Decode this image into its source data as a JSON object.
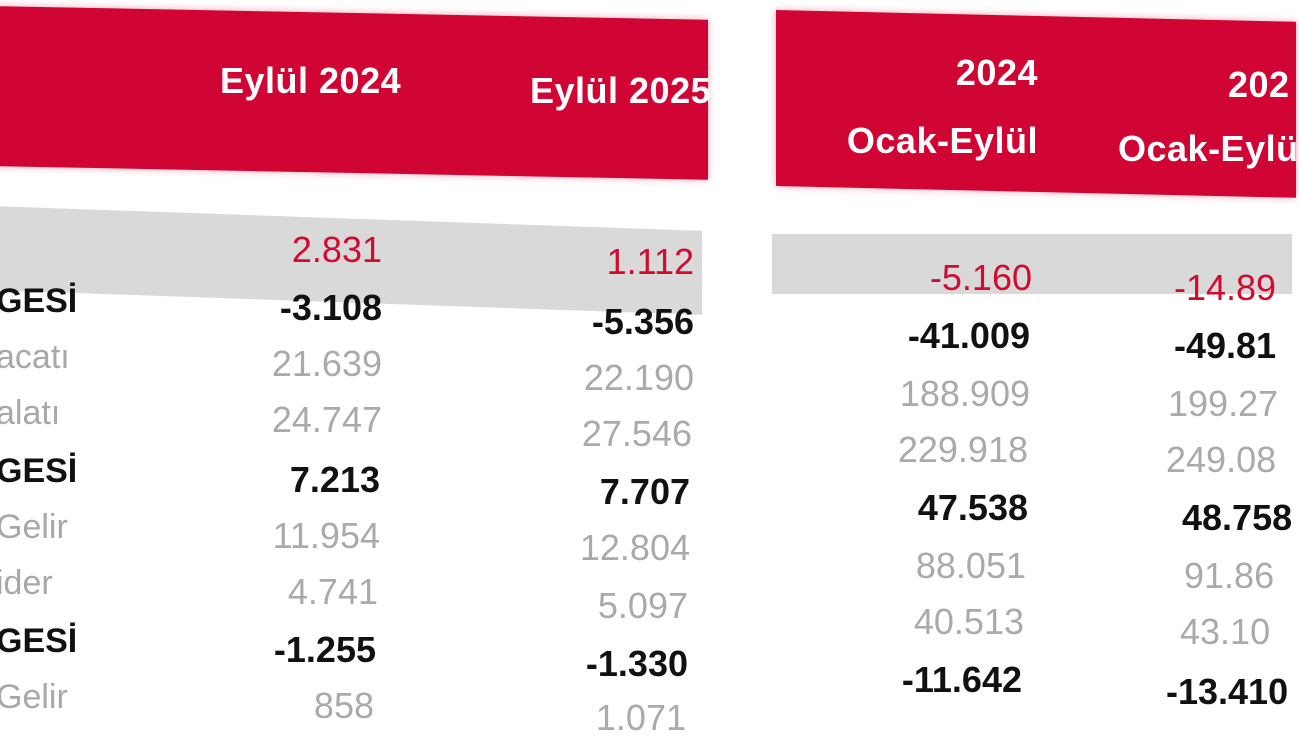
{
  "headers": {
    "col1": "Eylül 2024",
    "col2": "Eylül 2025",
    "col3_year": "2024",
    "col3_period": "Ocak-Eylül",
    "col4_year": "202",
    "col4_period": "Ocak-Eylü"
  },
  "rows": [
    {
      "label": "",
      "c1": "2.831",
      "c2": "1.112",
      "c3": "-5.160",
      "c4": "-14.89"
    },
    {
      "label": "GESİ",
      "c1": "-3.108",
      "c2": "-5.356",
      "c3": "-41.009",
      "c4": "-49.81"
    },
    {
      "label": "acatı",
      "c1": "21.639",
      "c2": "22.190",
      "c3": "188.909",
      "c4": "199.27"
    },
    {
      "label": "alatı",
      "c1": "24.747",
      "c2": "27.546",
      "c3": "229.918",
      "c4": "249.08"
    },
    {
      "label": "GESİ",
      "c1": "7.213",
      "c2": "7.707",
      "c3": "47.538",
      "c4": "48.758"
    },
    {
      "label": "Gelir",
      "c1": "11.954",
      "c2": "12.804",
      "c3": "88.051",
      "c4": "91.86"
    },
    {
      "label": "ider",
      "c1": "4.741",
      "c2": "5.097",
      "c3": "40.513",
      "c4": "43.10"
    },
    {
      "label": "GESİ",
      "c1": "-1.255",
      "c2": "-1.330",
      "c3": "-11.642",
      "c4": "-13.410"
    },
    {
      "label": "Gelir",
      "c1": "858",
      "c2": "1.071",
      "c3": "",
      "c4": ""
    }
  ]
}
